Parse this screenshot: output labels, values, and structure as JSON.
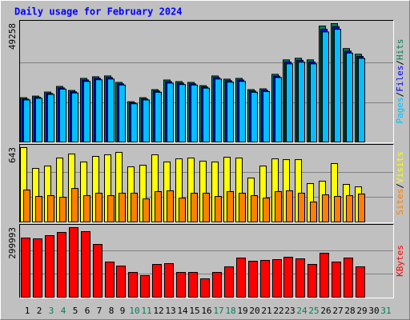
{
  "chart_data": [
    {
      "type": "bar",
      "title": "Daily usage for February 2024",
      "ylim": [
        0,
        49258
      ],
      "yticks": [
        49258
      ],
      "grid": true,
      "series": [
        {
          "name": "Hits",
          "color": "#00805c",
          "values": [
            18430,
            19100,
            20780,
            23120,
            21450,
            26470,
            27140,
            27480,
            24800,
            16750,
            18430,
            21780,
            25800,
            25130,
            24800,
            23460,
            27480,
            26140,
            26470,
            21780,
            22120,
            28150,
            34180,
            34850,
            34180,
            48250,
            49258,
            38870,
            36520,
            null,
            null
          ]
        },
        {
          "name": "Files",
          "color": "#0000ff",
          "values": [
            17900,
            18600,
            20200,
            22500,
            20900,
            25800,
            26500,
            26800,
            24200,
            16300,
            17900,
            21200,
            25100,
            24500,
            24200,
            22900,
            26800,
            25500,
            25800,
            21200,
            21500,
            27400,
            33300,
            34000,
            33300,
            46900,
            48000,
            37800,
            35600,
            null,
            null
          ]
        },
        {
          "name": "Pages",
          "color": "#00c0ff",
          "values": [
            17500,
            18200,
            19800,
            22000,
            20400,
            25200,
            25900,
            26200,
            23700,
            15900,
            17500,
            20700,
            24500,
            23900,
            23700,
            22400,
            26200,
            24900,
            25200,
            20700,
            21000,
            26800,
            32500,
            33200,
            32500,
            45800,
            46900,
            37000,
            34800,
            null,
            null
          ]
        }
      ]
    },
    {
      "type": "bar",
      "ylim": [
        0,
        643
      ],
      "yticks": [
        643
      ],
      "grid": true,
      "series": [
        {
          "name": "Visits",
          "color": "#ffff00",
          "values": [
            643,
            463,
            484,
            553,
            588,
            519,
            567,
            581,
            602,
            477,
            491,
            581,
            519,
            546,
            553,
            526,
            519,
            560,
            553,
            380,
            484,
            546,
            539,
            539,
            332,
            353,
            505,
            325,
            304,
            null,
            null
          ]
        },
        {
          "name": "Sites",
          "color": "#ff8000",
          "values": [
            277,
            221,
            228,
            214,
            290,
            228,
            249,
            228,
            249,
            249,
            200,
            263,
            270,
            207,
            249,
            249,
            221,
            263,
            249,
            228,
            207,
            263,
            270,
            249,
            173,
            235,
            221,
            228,
            242,
            null,
            null
          ]
        }
      ]
    },
    {
      "type": "bar",
      "ylim": [
        0,
        299993
      ],
      "yticks": [
        299993
      ],
      "grid": true,
      "series": [
        {
          "name": "KBytes",
          "color": "#ff0000",
          "values": [
            255170,
            251720,
            265510,
            279300,
            299993,
            282750,
            227580,
            151720,
            134480,
            106890,
            93100,
            141380,
            144830,
            106890,
            106890,
            79310,
            106890,
            131030,
            168960,
            155170,
            158620,
            162070,
            172410,
            165510,
            141380,
            189650,
            151720,
            168960,
            131030,
            null,
            null
          ]
        }
      ],
      "categories": [
        "1",
        "2",
        "3",
        "4",
        "5",
        "6",
        "7",
        "8",
        "9",
        "10",
        "11",
        "12",
        "13",
        "14",
        "15",
        "16",
        "17",
        "18",
        "19",
        "20",
        "21",
        "22",
        "23",
        "24",
        "25",
        "26",
        "27",
        "28",
        "29",
        "30",
        "31"
      ],
      "category_colors": [
        "#000000",
        "#000000",
        "#00805c",
        "#00805c",
        "#000000",
        "#000000",
        "#000000",
        "#000000",
        "#000000",
        "#00805c",
        "#00805c",
        "#000000",
        "#000000",
        "#000000",
        "#000000",
        "#000000",
        "#00805c",
        "#00805c",
        "#000000",
        "#000000",
        "#000000",
        "#000000",
        "#000000",
        "#00805c",
        "#00805c",
        "#000000",
        "#000000",
        "#000000",
        "#000000",
        "#000000",
        "#00805c"
      ]
    }
  ]
}
